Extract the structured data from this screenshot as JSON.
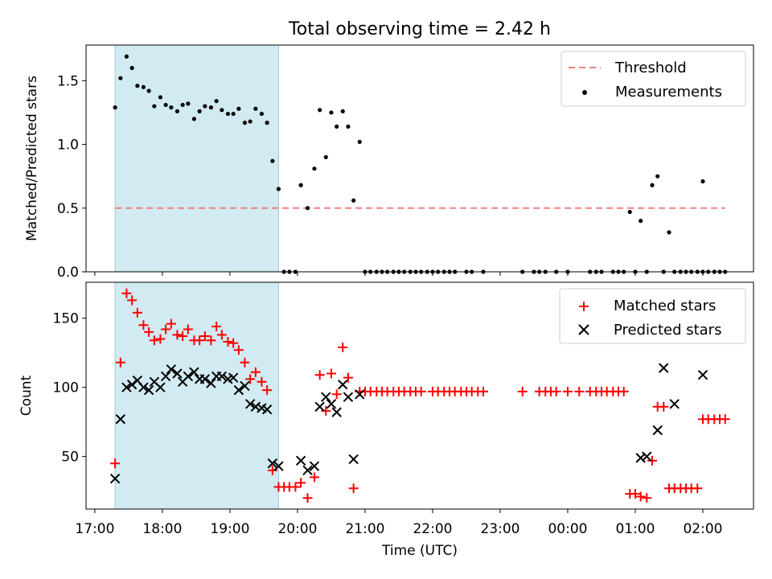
{
  "title": "Total observing time = 2.42 h",
  "xlabel": "Time (UTC)",
  "x_ticks": [
    "17:00",
    "18:00",
    "19:00",
    "20:00",
    "21:00",
    "22:00",
    "23:00",
    "00:00",
    "01:00",
    "02:00"
  ],
  "highlight_color": "#add8e6",
  "chart_data": [
    {
      "type": "scatter",
      "ylabel": "Matched/Predicted stars",
      "xlim": [
        16.87,
        26.75
      ],
      "ylim": [
        0.0,
        1.78
      ],
      "y_ticks": [
        "0.0",
        "0.5",
        "1.0",
        "1.5"
      ],
      "y_tick_values": [
        0.0,
        0.5,
        1.0,
        1.5
      ],
      "highlight_span": [
        17.3,
        19.72
      ],
      "threshold": {
        "name": "Threshold",
        "value": 0.5,
        "x_range": [
          17.3,
          26.33
        ],
        "color": "#f08080",
        "style": "dashed"
      },
      "legend": {
        "position": "top-right",
        "entries": [
          "Threshold",
          "Measurements"
        ]
      },
      "series": [
        {
          "name": "Measurements",
          "color": "#000000",
          "marker": "dot",
          "points": [
            [
              17.3,
              1.29
            ],
            [
              17.38,
              1.52
            ],
            [
              17.47,
              1.69
            ],
            [
              17.55,
              1.6
            ],
            [
              17.63,
              1.46
            ],
            [
              17.72,
              1.45
            ],
            [
              17.8,
              1.42
            ],
            [
              17.88,
              1.3
            ],
            [
              17.97,
              1.37
            ],
            [
              18.05,
              1.31
            ],
            [
              18.13,
              1.29
            ],
            [
              18.22,
              1.26
            ],
            [
              18.3,
              1.31
            ],
            [
              18.38,
              1.32
            ],
            [
              18.47,
              1.2
            ],
            [
              18.55,
              1.26
            ],
            [
              18.63,
              1.3
            ],
            [
              18.72,
              1.29
            ],
            [
              18.8,
              1.34
            ],
            [
              18.88,
              1.27
            ],
            [
              18.97,
              1.24
            ],
            [
              19.05,
              1.24
            ],
            [
              19.13,
              1.28
            ],
            [
              19.22,
              1.17
            ],
            [
              19.3,
              1.18
            ],
            [
              19.38,
              1.28
            ],
            [
              19.47,
              1.24
            ],
            [
              19.55,
              1.17
            ],
            [
              19.63,
              0.87
            ],
            [
              19.72,
              0.65
            ],
            [
              19.8,
              0.0
            ],
            [
              19.88,
              0.0
            ],
            [
              19.97,
              0.0
            ],
            [
              20.05,
              0.68
            ],
            [
              20.15,
              0.5
            ],
            [
              20.25,
              0.81
            ],
            [
              20.33,
              1.27
            ],
            [
              20.42,
              0.9
            ],
            [
              20.5,
              1.25
            ],
            [
              20.58,
              1.14
            ],
            [
              20.67,
              1.26
            ],
            [
              20.75,
              1.14
            ],
            [
              20.83,
              0.56
            ],
            [
              20.92,
              1.02
            ],
            [
              21.0,
              0.0
            ],
            [
              21.08,
              0.0
            ],
            [
              21.17,
              0.0
            ],
            [
              21.25,
              0.0
            ],
            [
              21.33,
              0.0
            ],
            [
              21.42,
              0.0
            ],
            [
              21.5,
              0.0
            ],
            [
              21.58,
              0.0
            ],
            [
              21.67,
              0.0
            ],
            [
              21.75,
              0.0
            ],
            [
              21.83,
              0.0
            ],
            [
              21.92,
              0.0
            ],
            [
              22.0,
              0.0
            ],
            [
              22.08,
              0.0
            ],
            [
              22.17,
              0.0
            ],
            [
              22.25,
              0.0
            ],
            [
              22.33,
              0.0
            ],
            [
              22.5,
              0.0
            ],
            [
              22.58,
              0.0
            ],
            [
              22.75,
              0.0
            ],
            [
              23.33,
              0.0
            ],
            [
              23.5,
              0.0
            ],
            [
              23.58,
              0.0
            ],
            [
              23.67,
              0.0
            ],
            [
              23.83,
              0.0
            ],
            [
              24.0,
              0.0
            ],
            [
              24.33,
              0.0
            ],
            [
              24.42,
              0.0
            ],
            [
              24.5,
              0.0
            ],
            [
              24.67,
              0.0
            ],
            [
              24.75,
              0.0
            ],
            [
              24.83,
              0.0
            ],
            [
              24.92,
              0.47
            ],
            [
              25.0,
              0.0
            ],
            [
              25.08,
              0.4
            ],
            [
              25.17,
              0.0
            ],
            [
              25.25,
              0.68
            ],
            [
              25.33,
              0.75
            ],
            [
              25.42,
              0.0
            ],
            [
              25.5,
              0.31
            ],
            [
              25.58,
              0.0
            ],
            [
              25.67,
              0.0
            ],
            [
              25.75,
              0.0
            ],
            [
              25.83,
              0.0
            ],
            [
              25.92,
              0.0
            ],
            [
              26.0,
              0.0
            ],
            [
              26.0,
              0.71
            ],
            [
              26.08,
              0.0
            ],
            [
              26.17,
              0.0
            ],
            [
              26.25,
              0.0
            ],
            [
              26.33,
              0.0
            ]
          ]
        }
      ]
    },
    {
      "type": "scatter",
      "ylabel": "Count",
      "xlim": [
        16.87,
        26.75
      ],
      "ylim": [
        12,
        176
      ],
      "y_ticks": [
        "50",
        "100",
        "150"
      ],
      "y_tick_values": [
        50,
        100,
        150
      ],
      "highlight_span": [
        17.3,
        19.72
      ],
      "legend": {
        "position": "top-right",
        "entries": [
          "Matched stars",
          "Predicted stars"
        ]
      },
      "series": [
        {
          "name": "Matched stars",
          "color": "#ff0000",
          "marker": "plus",
          "points": [
            [
              17.3,
              45
            ],
            [
              17.38,
              118
            ],
            [
              17.47,
              168
            ],
            [
              17.55,
              163
            ],
            [
              17.63,
              154
            ],
            [
              17.72,
              145
            ],
            [
              17.8,
              140
            ],
            [
              17.88,
              134
            ],
            [
              17.97,
              135
            ],
            [
              18.05,
              142
            ],
            [
              18.13,
              146
            ],
            [
              18.22,
              138
            ],
            [
              18.3,
              137
            ],
            [
              18.38,
              142
            ],
            [
              18.47,
              134
            ],
            [
              18.55,
              134
            ],
            [
              18.63,
              137
            ],
            [
              18.72,
              134
            ],
            [
              18.8,
              144
            ],
            [
              18.88,
              138
            ],
            [
              18.97,
              133
            ],
            [
              19.05,
              132
            ],
            [
              19.13,
              127
            ],
            [
              19.22,
              118
            ],
            [
              19.3,
              106
            ],
            [
              19.38,
              111
            ],
            [
              19.47,
              104
            ],
            [
              19.55,
              98
            ],
            [
              19.63,
              40
            ],
            [
              19.72,
              28
            ],
            [
              19.8,
              28
            ],
            [
              19.88,
              28
            ],
            [
              19.97,
              28
            ],
            [
              20.05,
              31
            ],
            [
              20.15,
              20
            ],
            [
              20.25,
              35
            ],
            [
              20.33,
              109
            ],
            [
              20.42,
              83
            ],
            [
              20.5,
              110
            ],
            [
              20.58,
              95
            ],
            [
              20.67,
              129
            ],
            [
              20.75,
              107
            ],
            [
              20.83,
              27
            ],
            [
              20.92,
              97
            ],
            [
              21.0,
              97
            ],
            [
              21.08,
              97
            ],
            [
              21.17,
              97
            ],
            [
              21.25,
              97
            ],
            [
              21.33,
              97
            ],
            [
              21.42,
              97
            ],
            [
              21.5,
              97
            ],
            [
              21.58,
              97
            ],
            [
              21.67,
              97
            ],
            [
              21.75,
              97
            ],
            [
              21.83,
              97
            ],
            [
              22.0,
              97
            ],
            [
              22.08,
              97
            ],
            [
              22.17,
              97
            ],
            [
              22.25,
              97
            ],
            [
              22.33,
              97
            ],
            [
              22.42,
              97
            ],
            [
              22.5,
              97
            ],
            [
              22.58,
              97
            ],
            [
              22.67,
              97
            ],
            [
              22.75,
              97
            ],
            [
              23.33,
              97
            ],
            [
              23.58,
              97
            ],
            [
              23.67,
              97
            ],
            [
              23.75,
              97
            ],
            [
              23.83,
              97
            ],
            [
              24.0,
              97
            ],
            [
              24.17,
              97
            ],
            [
              24.33,
              97
            ],
            [
              24.42,
              97
            ],
            [
              24.5,
              97
            ],
            [
              24.58,
              97
            ],
            [
              24.67,
              97
            ],
            [
              24.75,
              97
            ],
            [
              24.83,
              97
            ],
            [
              24.92,
              23
            ],
            [
              25.0,
              23
            ],
            [
              25.08,
              21
            ],
            [
              25.17,
              20
            ],
            [
              25.25,
              47
            ],
            [
              25.33,
              86
            ],
            [
              25.42,
              86
            ],
            [
              25.5,
              27
            ],
            [
              25.58,
              27
            ],
            [
              25.67,
              27
            ],
            [
              25.75,
              27
            ],
            [
              25.83,
              27
            ],
            [
              25.92,
              27
            ],
            [
              26.0,
              77
            ],
            [
              26.08,
              77
            ],
            [
              26.17,
              77
            ],
            [
              26.25,
              77
            ],
            [
              26.33,
              77
            ]
          ]
        },
        {
          "name": "Predicted stars",
          "color": "#000000",
          "marker": "x",
          "points": [
            [
              17.3,
              34
            ],
            [
              17.38,
              77
            ],
            [
              17.47,
              100
            ],
            [
              17.55,
              102
            ],
            [
              17.63,
              105
            ],
            [
              17.72,
              100
            ],
            [
              17.8,
              98
            ],
            [
              17.88,
              104
            ],
            [
              17.97,
              100
            ],
            [
              18.05,
              108
            ],
            [
              18.13,
              113
            ],
            [
              18.22,
              110
            ],
            [
              18.3,
              104
            ],
            [
              18.38,
              108
            ],
            [
              18.47,
              111
            ],
            [
              18.55,
              106
            ],
            [
              18.63,
              106
            ],
            [
              18.72,
              103
            ],
            [
              18.8,
              108
            ],
            [
              18.88,
              108
            ],
            [
              18.97,
              106
            ],
            [
              19.05,
              107
            ],
            [
              19.13,
              98
            ],
            [
              19.22,
              101
            ],
            [
              19.3,
              88
            ],
            [
              19.38,
              86
            ],
            [
              19.47,
              85
            ],
            [
              19.55,
              84
            ],
            [
              19.63,
              45
            ],
            [
              19.72,
              43
            ],
            [
              20.05,
              47
            ],
            [
              20.15,
              40
            ],
            [
              20.25,
              43
            ],
            [
              20.33,
              86
            ],
            [
              20.42,
              93
            ],
            [
              20.5,
              88
            ],
            [
              20.58,
              82
            ],
            [
              20.67,
              102
            ],
            [
              20.75,
              93
            ],
            [
              20.83,
              48
            ],
            [
              20.92,
              95
            ],
            [
              25.08,
              49
            ],
            [
              25.17,
              50
            ],
            [
              25.33,
              69
            ],
            [
              25.42,
              114
            ],
            [
              25.58,
              88
            ],
            [
              26.0,
              109
            ]
          ]
        }
      ]
    }
  ]
}
